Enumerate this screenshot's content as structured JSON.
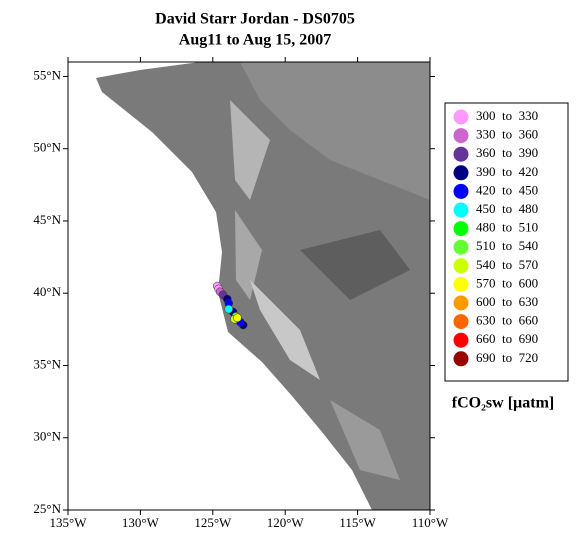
{
  "chart_data": {
    "type": "scatter",
    "title": "David Starr Jordan - DS0705",
    "subtitle": "Aug11 to Aug 15, 2007",
    "legend_title": "fCO₂sw [µatm]",
    "xlim": [
      -135,
      -110
    ],
    "xticks": [
      {
        "value": -135,
        "label": "135°W"
      },
      {
        "value": -130,
        "label": "130°W"
      },
      {
        "value": -125,
        "label": "125°W"
      },
      {
        "value": -120,
        "label": "120°W"
      },
      {
        "value": -115,
        "label": "115°W"
      },
      {
        "value": -110,
        "label": "110°W"
      }
    ],
    "ylim": [
      25,
      56
    ],
    "yticks": [
      {
        "value": 25,
        "label": "25°N"
      },
      {
        "value": 30,
        "label": "30°N"
      },
      {
        "value": 35,
        "label": "35°N"
      },
      {
        "value": 40,
        "label": "40°N"
      },
      {
        "value": 45,
        "label": "45°N"
      },
      {
        "value": 50,
        "label": "50°N"
      },
      {
        "value": 55,
        "label": "55°N"
      }
    ],
    "legend": "right",
    "series": [
      {
        "name": "300  to  330",
        "color": "#ff99ff",
        "x": [
          -124.7,
          -124.6
        ],
        "y": [
          40.5,
          40.3
        ]
      },
      {
        "name": "330  to  360",
        "color": "#cc66cc",
        "x": [
          -124.5
        ],
        "y": [
          40.1
        ]
      },
      {
        "name": "360  to  390",
        "color": "#663399",
        "x": [
          -124.3
        ],
        "y": [
          39.9
        ]
      },
      {
        "name": "390  to  420",
        "color": "#000080",
        "x": [
          -124.0,
          -123.6,
          -122.9
        ],
        "y": [
          39.6,
          38.7,
          37.8
        ]
      },
      {
        "name": "420  to  450",
        "color": "#0000ff",
        "x": [
          -123.9,
          -123.1
        ],
        "y": [
          39.3,
          38.0
        ]
      },
      {
        "name": "450  to  480",
        "color": "#00ffff",
        "x": [
          -123.9
        ],
        "y": [
          38.9
        ]
      },
      {
        "name": "480  to  510",
        "color": "#00ff00",
        "x": [],
        "y": []
      },
      {
        "name": "510  to  540",
        "color": "#66ff33",
        "x": [
          -123.4
        ],
        "y": [
          38.4
        ]
      },
      {
        "name": "540  to  570",
        "color": "#ccff00",
        "x": [
          -123.5
        ],
        "y": [
          38.2
        ]
      },
      {
        "name": "570  to  600",
        "color": "#ffff00",
        "x": [
          -123.3
        ],
        "y": [
          38.3
        ]
      },
      {
        "name": "600  to  630",
        "color": "#ff9900",
        "x": [],
        "y": []
      },
      {
        "name": "630  to  660",
        "color": "#ff6600",
        "x": [],
        "y": []
      },
      {
        "name": "660  to  690",
        "color": "#ff0000",
        "x": [],
        "y": []
      },
      {
        "name": "690  to  720",
        "color": "#990000",
        "x": [],
        "y": []
      }
    ]
  }
}
